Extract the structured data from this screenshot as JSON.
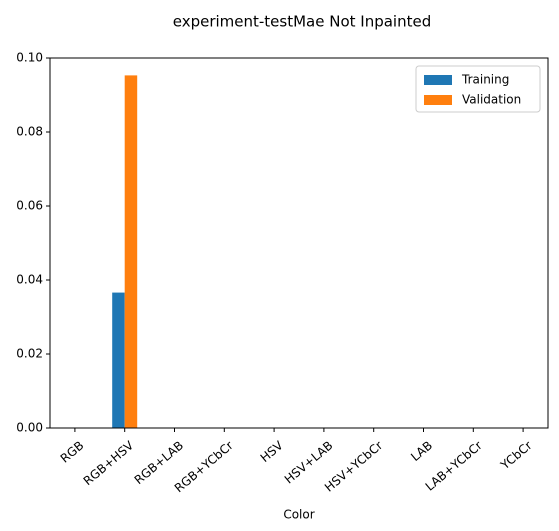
{
  "chart_data": {
    "type": "bar",
    "title": "experiment-testMae Not Inpainted",
    "xlabel": "Color",
    "ylabel": "",
    "categories": [
      "RGB",
      "RGB+HSV",
      "RGB+LAB",
      "RGB+YCbCr",
      "HSV",
      "HSV+LAB",
      "HSV+YCbCr",
      "LAB",
      "LAB+YCbCr",
      "YCbCr"
    ],
    "series": [
      {
        "name": "Training",
        "color": "#1f77b4",
        "values": [
          0,
          0.0366,
          0,
          0,
          0,
          0,
          0,
          0,
          0,
          0
        ]
      },
      {
        "name": "Validation",
        "color": "#ff7f0e",
        "values": [
          0,
          0.0953,
          0,
          0,
          0,
          0,
          0,
          0,
          0,
          0
        ]
      }
    ],
    "yticks": [
      "0.00",
      "0.02",
      "0.04",
      "0.06",
      "0.08",
      "0.10"
    ],
    "ylim": [
      0,
      0.1
    ],
    "legend_position": "top-right",
    "grid": false
  }
}
